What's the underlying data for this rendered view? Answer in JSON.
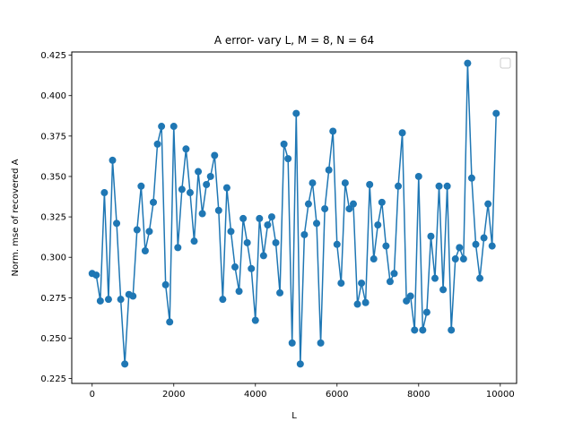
{
  "chart_data": {
    "type": "line",
    "title": "A error- vary L, M = 8, N = 64",
    "xlabel": "L",
    "ylabel": "Norm. mse of recovered A",
    "xlim": [
      -500,
      10400
    ],
    "ylim": [
      0.222,
      0.427
    ],
    "xticks": [
      0,
      2000,
      4000,
      6000,
      8000,
      10000
    ],
    "xtick_labels": [
      "0",
      "2000",
      "4000",
      "6000",
      "8000",
      "10000"
    ],
    "yticks": [
      0.225,
      0.25,
      0.275,
      0.3,
      0.325,
      0.35,
      0.375,
      0.4,
      0.425
    ],
    "ytick_labels": [
      "0.225",
      "0.250",
      "0.275",
      "0.300",
      "0.325",
      "0.350",
      "0.375",
      "0.400",
      "0.425"
    ],
    "grid": false,
    "legend": "top-right, empty",
    "marker": "circle",
    "color": "#1f77b4",
    "series": [
      {
        "x": [
          0,
          100,
          200,
          300,
          400,
          500,
          600,
          700,
          800,
          900,
          1000,
          1100,
          1200,
          1300,
          1400,
          1500,
          1600,
          1700,
          1800,
          1900,
          2000,
          2100,
          2200,
          2300,
          2400,
          2500,
          2600,
          2700,
          2800,
          2900,
          3000,
          3100,
          3200,
          3300,
          3400,
          3500,
          3600,
          3700,
          3800,
          3900,
          4000,
          4100,
          4200,
          4300,
          4400,
          4500,
          4600,
          4700,
          4800,
          4900,
          5000,
          5100,
          5200,
          5300,
          5400,
          5500,
          5600,
          5700,
          5800,
          5900,
          6000,
          6100,
          6200,
          6300,
          6400,
          6500,
          6600,
          6700,
          6800,
          6900,
          7000,
          7100,
          7200,
          7300,
          7400,
          7500,
          7600,
          7700,
          7800,
          7900,
          8000,
          8100,
          8200,
          8300,
          8400,
          8500,
          8600,
          8700,
          8800,
          8900,
          9000,
          9100,
          9200,
          9300,
          9400,
          9500,
          9600,
          9700,
          9800,
          9900
        ],
        "values": [
          0.29,
          0.289,
          0.273,
          0.34,
          0.274,
          0.36,
          0.321,
          0.274,
          0.234,
          0.277,
          0.276,
          0.317,
          0.344,
          0.304,
          0.316,
          0.334,
          0.37,
          0.381,
          0.283,
          0.26,
          0.381,
          0.306,
          0.342,
          0.367,
          0.34,
          0.31,
          0.353,
          0.327,
          0.345,
          0.35,
          0.363,
          0.329,
          0.274,
          0.343,
          0.316,
          0.294,
          0.279,
          0.324,
          0.309,
          0.293,
          0.261,
          0.324,
          0.301,
          0.32,
          0.325,
          0.309,
          0.278,
          0.37,
          0.361,
          0.247,
          0.389,
          0.234,
          0.314,
          0.333,
          0.346,
          0.321,
          0.247,
          0.33,
          0.354,
          0.378,
          0.308,
          0.284,
          0.346,
          0.33,
          0.333,
          0.271,
          0.284,
          0.272,
          0.345,
          0.299,
          0.32,
          0.334,
          0.307,
          0.285,
          0.29,
          0.344,
          0.377,
          0.273,
          0.276,
          0.255,
          0.35,
          0.255,
          0.266,
          0.313,
          0.287,
          0.344,
          0.28,
          0.344,
          0.255,
          0.299,
          0.306,
          0.299,
          0.42,
          0.349,
          0.308,
          0.287,
          0.312,
          0.333,
          0.307,
          0.389
        ]
      }
    ]
  }
}
